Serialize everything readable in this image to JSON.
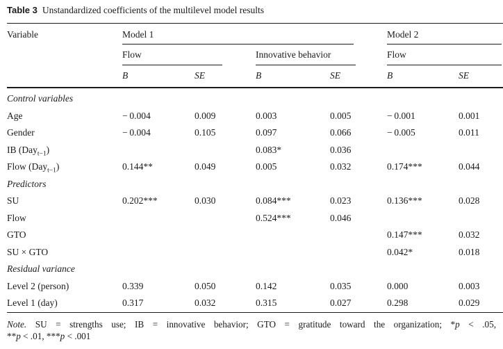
{
  "caption": {
    "label": "Table 3",
    "text": "Unstandardized coefficients of the multilevel model results"
  },
  "table": {
    "header": {
      "variable": "Variable",
      "model1": "Model 1",
      "model2": "Model 2",
      "model1_outcome1": "Flow",
      "model1_outcome2": "Innovative behavior",
      "model2_outcome1": "Flow",
      "b": "B",
      "se": "SE"
    },
    "rows": [
      {
        "section": "Control variables"
      },
      {
        "label": "Age",
        "values": [
          "− 0.004",
          "0.009",
          "0.003",
          "0.005",
          "− 0.001",
          "0.001"
        ]
      },
      {
        "label": "Gender",
        "values": [
          "− 0.004",
          "0.105",
          "0.097",
          "0.066",
          "− 0.005",
          "0.011"
        ]
      },
      {
        "label": "IB (Day",
        "sub": "t−1",
        "label_end": ")",
        "values": [
          "",
          "",
          "0.083*",
          "0.036",
          "",
          ""
        ]
      },
      {
        "label": "Flow (Day",
        "sub": "t−1",
        "label_end": ")",
        "values": [
          "0.144**",
          "0.049",
          "0.005",
          "0.032",
          "0.174***",
          "0.044"
        ]
      },
      {
        "section": "Predictors"
      },
      {
        "label": "SU",
        "values": [
          "0.202***",
          "0.030",
          "0.084***",
          "0.023",
          "0.136***",
          "0.028"
        ]
      },
      {
        "label": "Flow",
        "values": [
          "",
          "",
          "0.524***",
          "0.046",
          "",
          ""
        ]
      },
      {
        "label": "GTO",
        "values": [
          "",
          "",
          "",
          "",
          "0.147***",
          "0.032"
        ]
      },
      {
        "label": "SU × GTO",
        "values": [
          "",
          "",
          "",
          "",
          "0.042*",
          "0.018"
        ]
      },
      {
        "section": "Residual variance"
      },
      {
        "label": "Level 2 (person)",
        "values": [
          "0.339",
          "0.050",
          "0.142",
          "0.035",
          "0.000",
          "0.003"
        ]
      },
      {
        "label": "Level 1 (day)",
        "values": [
          "0.317",
          "0.032",
          "0.315",
          "0.027",
          "0.298",
          "0.029"
        ]
      }
    ]
  },
  "note": {
    "line1": [
      {
        "style": "italic",
        "text": "Note."
      },
      {
        "style": "normal",
        "text": " SU = strengths use; IB = innovative behavior; GTO = gratitude toward the organization; *"
      },
      {
        "style": "italic",
        "text": "p"
      },
      {
        "style": "normal",
        "text": " < .05,"
      }
    ],
    "line2": [
      {
        "style": "normal",
        "text": "**"
      },
      {
        "style": "italic",
        "text": "p"
      },
      {
        "style": "normal",
        "text": " < .01, ***"
      },
      {
        "style": "italic",
        "text": "p"
      },
      {
        "style": "normal",
        "text": " < .001"
      }
    ]
  },
  "colors": {
    "text": "#1a1a1a",
    "rule": "#1a1a1a",
    "background": "#ffffff"
  }
}
